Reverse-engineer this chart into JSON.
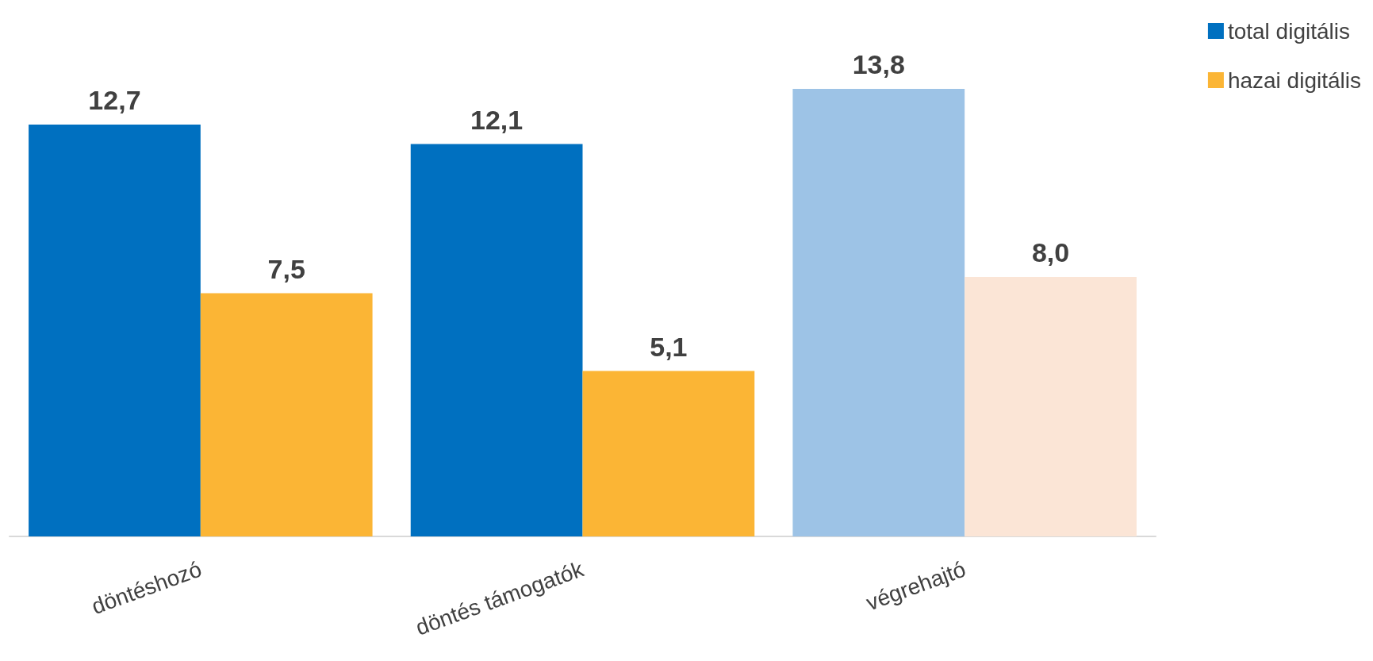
{
  "chart_data": {
    "type": "bar",
    "categories": [
      "döntéshozó",
      "döntés támogatók",
      "végrehajtó"
    ],
    "series": [
      {
        "name": "total digitális",
        "color": "#0070c0",
        "colors": [
          "#0070c0",
          "#0070c0",
          "#9dc3e6"
        ],
        "values": [
          12.7,
          12.1,
          13.8
        ],
        "value_labels": [
          "12,7",
          "12,1",
          "13,8"
        ]
      },
      {
        "name": "hazai digitális",
        "color": "#fbb535",
        "colors": [
          "#fbb535",
          "#fbb535",
          "#fbe5d6"
        ],
        "values": [
          7.5,
          5.1,
          8.0
        ],
        "value_labels": [
          "7,5",
          "5,1",
          "8,0"
        ]
      }
    ],
    "legend": "top right"
  }
}
